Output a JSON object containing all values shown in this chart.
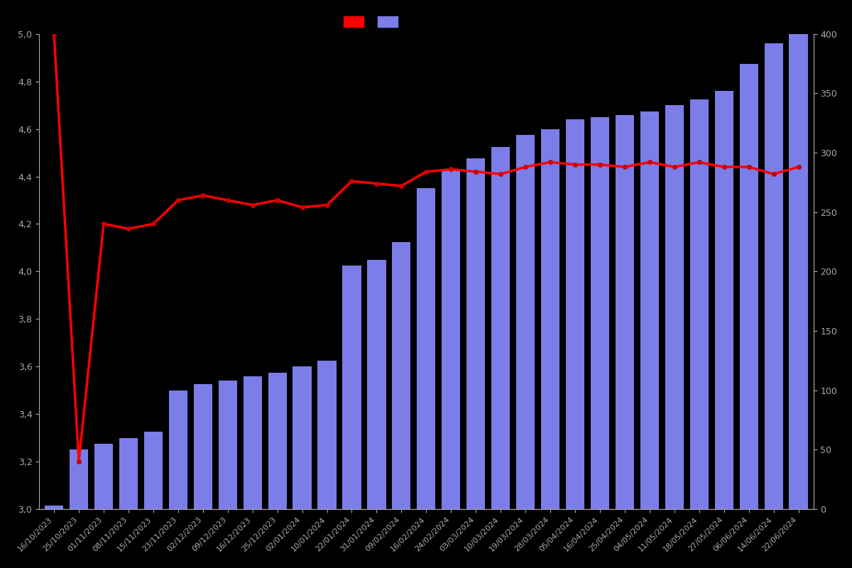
{
  "dates": [
    "16/10/2023",
    "25/10/2023",
    "01/11/2023",
    "08/11/2023",
    "15/11/2023",
    "23/11/2023",
    "02/12/2023",
    "09/12/2023",
    "16/12/2023",
    "25/12/2023",
    "02/01/2024",
    "10/01/2024",
    "22/01/2024",
    "31/01/2024",
    "09/02/2024",
    "16/02/2024",
    "24/02/2024",
    "03/03/2024",
    "10/03/2024",
    "19/03/2024",
    "28/03/2024",
    "05/04/2024",
    "16/04/2024",
    "25/04/2024",
    "04/05/2024",
    "11/05/2024",
    "18/05/2024",
    "27/05/2024",
    "06/06/2024",
    "14/06/2024",
    "22/06/2024"
  ],
  "bar_values": [
    3,
    50,
    55,
    60,
    65,
    100,
    105,
    108,
    112,
    115,
    120,
    125,
    205,
    210,
    225,
    270,
    285,
    295,
    305,
    315,
    320,
    328,
    330,
    332,
    335,
    340,
    345,
    352,
    375,
    392,
    400
  ],
  "line_values": [
    5.0,
    3.2,
    4.2,
    4.18,
    4.2,
    4.3,
    4.32,
    4.3,
    4.28,
    4.3,
    4.27,
    4.28,
    4.38,
    4.37,
    4.36,
    4.42,
    4.43,
    4.42,
    4.41,
    4.44,
    4.46,
    4.45,
    4.45,
    4.44,
    4.46,
    4.44,
    4.46,
    4.44,
    4.44,
    4.41,
    4.44
  ],
  "bar_color": "#7b7de8",
  "line_color": "#ff0000",
  "background_color": "#000000",
  "text_color": "#aaaaaa",
  "left_ylim": [
    3.0,
    5.0
  ],
  "right_ylim": [
    0,
    400
  ],
  "left_yticks": [
    3.0,
    3.2,
    3.4,
    3.6,
    3.8,
    4.0,
    4.2,
    4.4,
    4.6,
    4.8,
    5.0
  ],
  "right_yticks": [
    0,
    50,
    100,
    150,
    200,
    250,
    300,
    350,
    400
  ],
  "grid_color": "#222222",
  "marker_color": "#cc0000",
  "marker_size": 4
}
